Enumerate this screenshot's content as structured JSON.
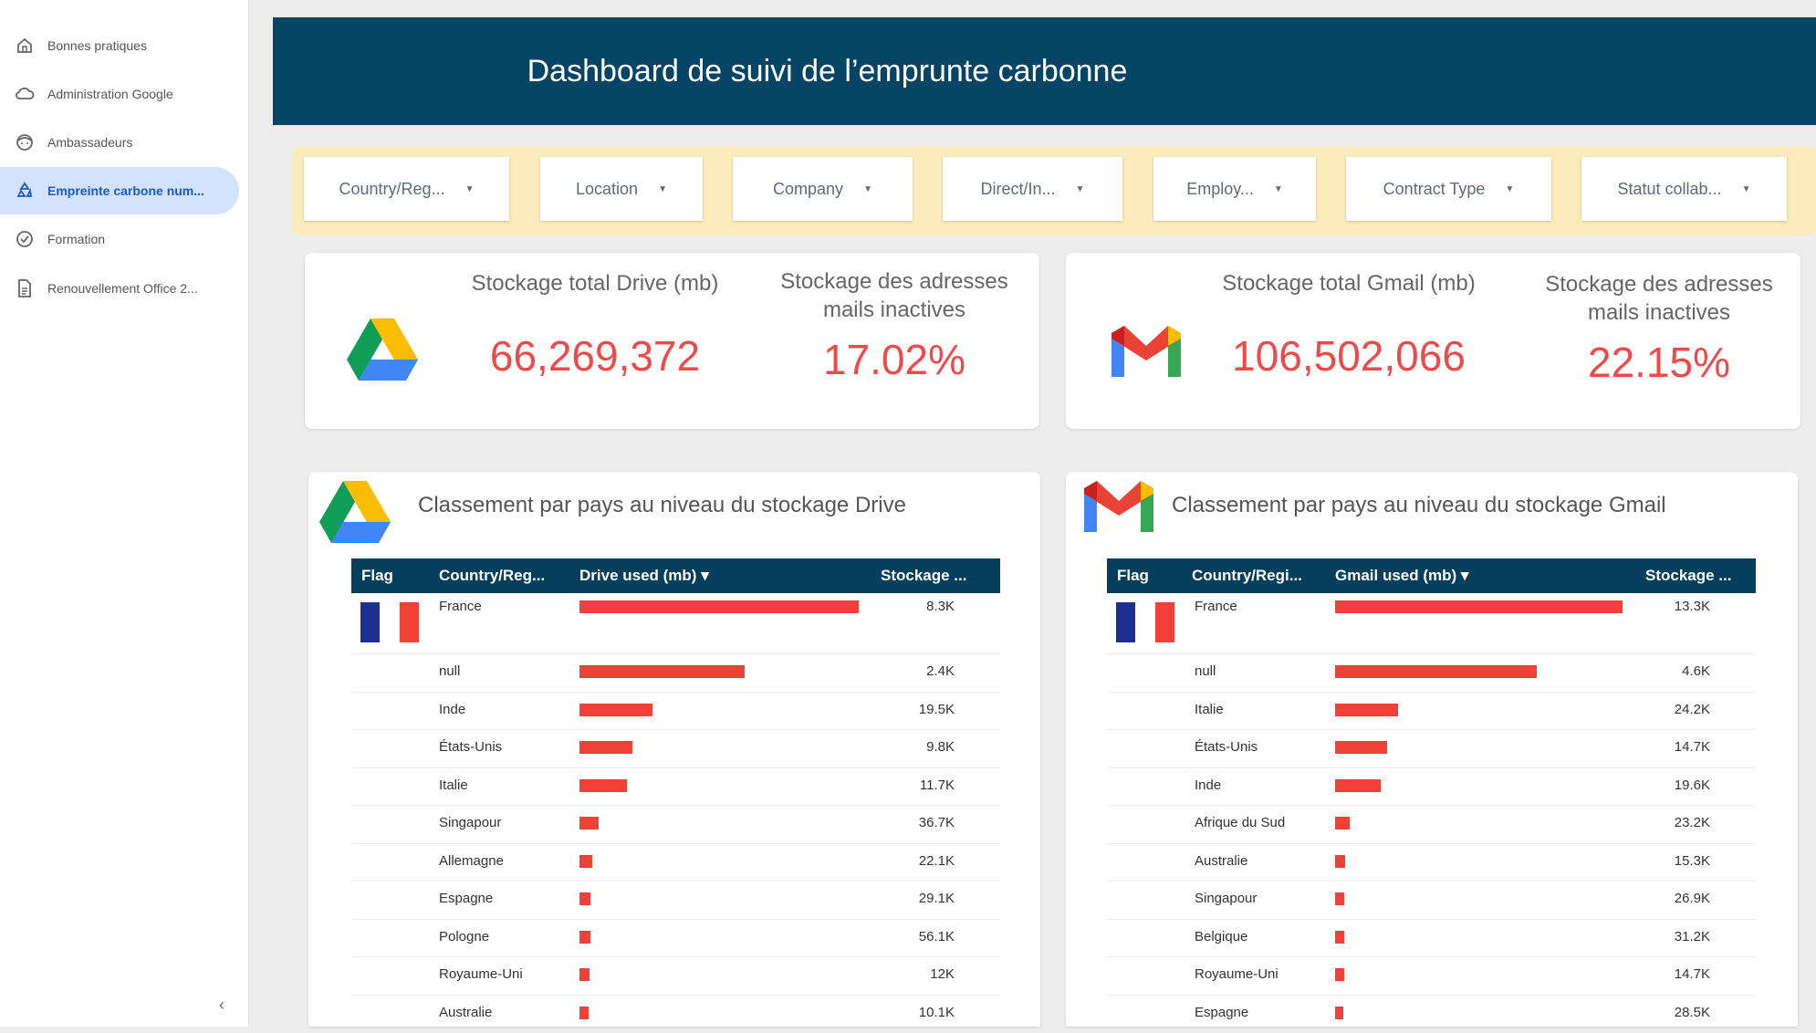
{
  "sidebar": {
    "items": [
      {
        "label": "Bonnes pratiques",
        "icon": "home-icon"
      },
      {
        "label": "Administration Google",
        "icon": "cloud-icon"
      },
      {
        "label": "Ambassadeurs",
        "icon": "face-icon"
      },
      {
        "label": "Empreinte carbone num...",
        "icon": "recycle-icon",
        "active": true
      },
      {
        "label": "Formation",
        "icon": "check-circle-icon"
      },
      {
        "label": "Renouvellement Office 2...",
        "icon": "document-icon"
      }
    ],
    "collapse_label": "‹"
  },
  "header": {
    "title": "Dashboard de suivi de l’emprunte carbonne"
  },
  "filters": [
    {
      "label": "Country/Reg..."
    },
    {
      "label": "Location"
    },
    {
      "label": "Company"
    },
    {
      "label": "Direct/In..."
    },
    {
      "label": "Employ..."
    },
    {
      "label": "Contract Type"
    },
    {
      "label": "Statut collab..."
    }
  ],
  "kpi": {
    "drive": {
      "total_label": "Stockage total Drive (mb)",
      "total_value": "66,269,372",
      "inactive_label": "Stockage des adresses mails inactives",
      "inactive_value": "17.02%"
    },
    "gmail": {
      "total_label": "Stockage total Gmail (mb)",
      "total_value": "106,502,066",
      "inactive_label": "Stockage des adresses mails inactives",
      "inactive_value": "22.15%"
    }
  },
  "drive_table": {
    "title": "Classement par pays au niveau du stockage Drive",
    "columns": [
      "Flag",
      "Country/Reg...",
      "Drive used (mb) ▾",
      "Stockage ..."
    ],
    "rows": [
      {
        "country": "France",
        "bar": 1.0,
        "stock": "8.3K",
        "flag": true
      },
      {
        "country": "null",
        "bar": 0.59,
        "stock": "2.4K"
      },
      {
        "country": "Inde",
        "bar": 0.26,
        "stock": "19.5K"
      },
      {
        "country": "États-Unis",
        "bar": 0.19,
        "stock": "9.8K"
      },
      {
        "country": "Italie",
        "bar": 0.17,
        "stock": "11.7K"
      },
      {
        "country": "Singapour",
        "bar": 0.07,
        "stock": "36.7K"
      },
      {
        "country": "Allemagne",
        "bar": 0.045,
        "stock": "22.1K"
      },
      {
        "country": "Espagne",
        "bar": 0.04,
        "stock": "29.1K"
      },
      {
        "country": "Pologne",
        "bar": 0.038,
        "stock": "56.1K"
      },
      {
        "country": "Royaume-Uni",
        "bar": 0.035,
        "stock": "12K"
      },
      {
        "country": "Australie",
        "bar": 0.033,
        "stock": "10.1K"
      }
    ]
  },
  "gmail_table": {
    "title": "Classement par pays au niveau du stockage Gmail",
    "columns": [
      "Flag",
      "Country/Regi...",
      "Gmail used (mb) ▾",
      "Stockage ..."
    ],
    "rows": [
      {
        "country": "France",
        "bar": 1.0,
        "stock": "13.3K",
        "flag": true
      },
      {
        "country": "null",
        "bar": 0.7,
        "stock": "4.6K"
      },
      {
        "country": "Italie",
        "bar": 0.22,
        "stock": "24.2K"
      },
      {
        "country": "États-Unis",
        "bar": 0.18,
        "stock": "14.7K"
      },
      {
        "country": "Inde",
        "bar": 0.16,
        "stock": "19.6K"
      },
      {
        "country": "Afrique du Sud",
        "bar": 0.05,
        "stock": "23.2K"
      },
      {
        "country": "Australie",
        "bar": 0.035,
        "stock": "15.3K"
      },
      {
        "country": "Singapour",
        "bar": 0.033,
        "stock": "26.9K"
      },
      {
        "country": "Belgique",
        "bar": 0.032,
        "stock": "31.2K"
      },
      {
        "country": "Royaume-Uni",
        "bar": 0.031,
        "stock": "14.7K"
      },
      {
        "country": "Espagne",
        "bar": 0.03,
        "stock": "28.5K"
      }
    ]
  },
  "colors": {
    "header_bg": "#044566",
    "filter_bar_bg": "#fcebbd",
    "accent_red": "#ef4a4a",
    "table_header_bg": "#063f5c",
    "active_nav_bg": "#d3e3fd"
  }
}
